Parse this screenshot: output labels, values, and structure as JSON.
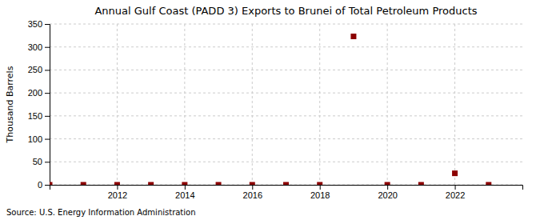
{
  "chart_data": {
    "type": "scatter",
    "title": "Annual Gulf Coast (PADD 3) Exports to Brunei of Total Petroleum Products",
    "ylabel": "Thousand Barrels",
    "source": "Source: U.S. Energy Information Administration",
    "x": [
      2010,
      2011,
      2012,
      2013,
      2014,
      2015,
      2016,
      2017,
      2018,
      2019,
      2020,
      2021,
      2022,
      2023
    ],
    "values": [
      0,
      0,
      0,
      0,
      0,
      0,
      0,
      0,
      0,
      323,
      0,
      0,
      25,
      0
    ],
    "color": "#8b0000",
    "marker": "square",
    "xlim": [
      2010.0,
      2024.0
    ],
    "ylim": [
      0,
      350
    ],
    "xticks": [
      2012,
      2014,
      2016,
      2018,
      2020,
      2022
    ],
    "yticks": [
      0,
      50,
      100,
      150,
      200,
      250,
      300,
      350
    ],
    "grid": true
  }
}
